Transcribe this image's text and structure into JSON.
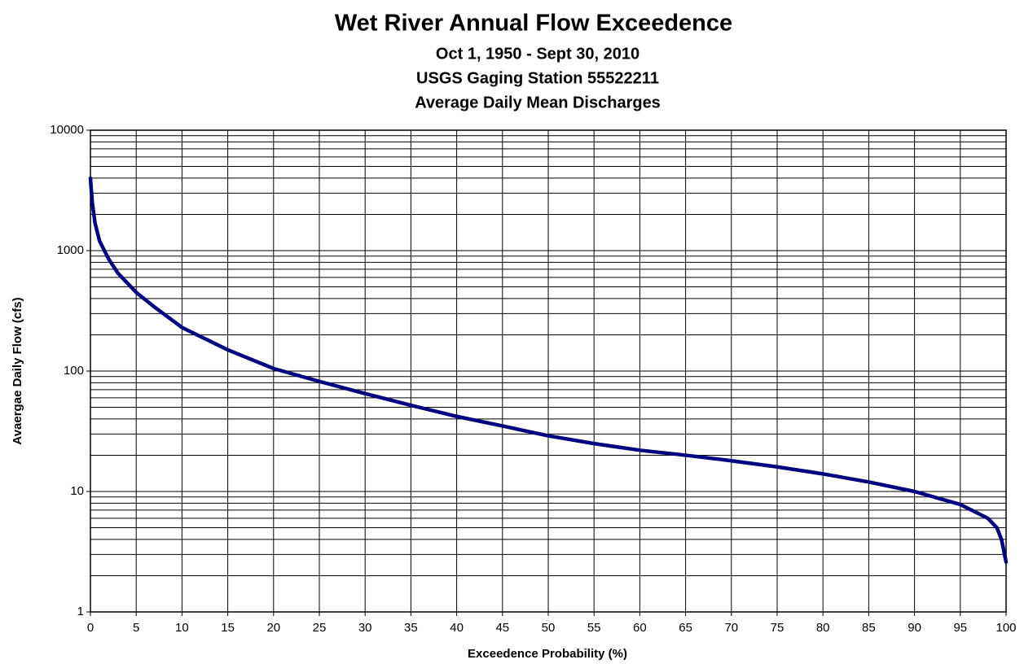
{
  "chart_data": {
    "type": "line",
    "title": "Wet River Annual Flow Exceedence",
    "subtitles": [
      "Oct 1, 1950 - Sept 30, 2010",
      "USGS Gaging Station 55522211",
      "Average Daily Mean Discharges"
    ],
    "x_label": "Exceedence Probability (%)",
    "y_label": "Avaergae Daily Flow (cfs)",
    "x": [
      0,
      0.2,
      0.5,
      1,
      2,
      3,
      5,
      7,
      10,
      15,
      20,
      25,
      30,
      35,
      40,
      45,
      50,
      55,
      60,
      65,
      70,
      75,
      80,
      85,
      90,
      95,
      98,
      99,
      99.5,
      100
    ],
    "series": [
      {
        "name": "Flow",
        "color": "#000080",
        "values": [
          4000,
          2500,
          1700,
          1200,
          850,
          650,
          450,
          340,
          230,
          150,
          105,
          82,
          65,
          52,
          42,
          35,
          29,
          25,
          22,
          20,
          18,
          16,
          14,
          12,
          10,
          7.8,
          6,
          5,
          4,
          2.6
        ]
      }
    ],
    "xlim": [
      0,
      100
    ],
    "xticks": [
      0,
      5,
      10,
      15,
      20,
      25,
      30,
      35,
      40,
      45,
      50,
      55,
      60,
      65,
      70,
      75,
      80,
      85,
      90,
      95,
      100
    ],
    "ylim": [
      1,
      10000
    ],
    "yticks": [
      1,
      10,
      100,
      1000,
      10000
    ],
    "minor_yticks": [
      2,
      3,
      4,
      5,
      6,
      7,
      8,
      9,
      20,
      30,
      40,
      50,
      60,
      70,
      80,
      90,
      200,
      300,
      400,
      500,
      600,
      700,
      800,
      900,
      2000,
      3000,
      4000,
      5000,
      6000,
      7000,
      8000,
      9000
    ],
    "log_y": true,
    "grid": true
  }
}
